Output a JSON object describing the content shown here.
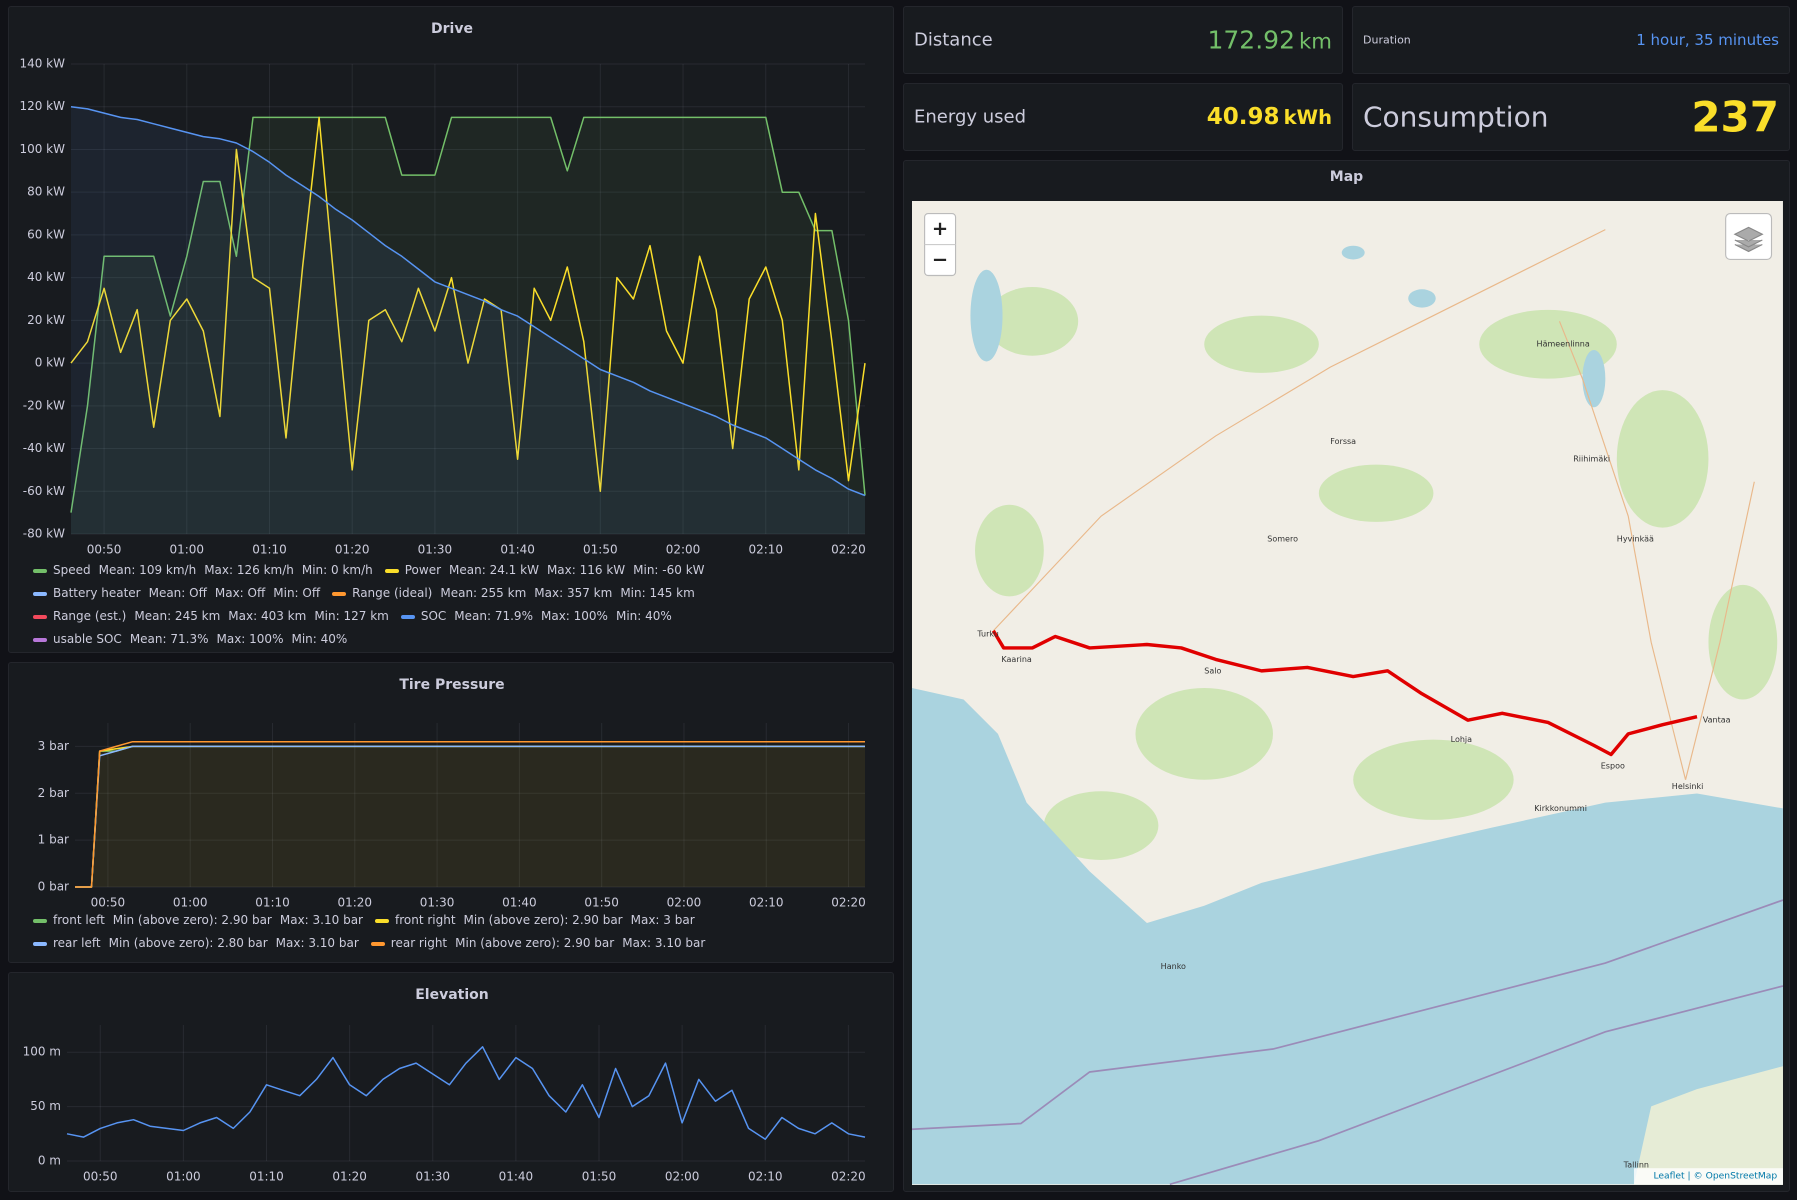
{
  "stats": [
    {
      "title": "Distance",
      "value": 172.92,
      "unit": "km",
      "color": "#73bf69"
    },
    {
      "title": "Duration",
      "value": "1 hour, 35 minutes",
      "color": "#5794f2"
    },
    {
      "title": "Energy used",
      "value": 40.98,
      "unit": "kWh",
      "color": "#fade2a"
    },
    {
      "title": "Consumption",
      "value": 237,
      "color": "#fade2a"
    }
  ],
  "map": {
    "title": "Map",
    "zoom_in": "+",
    "zoom_out": "−",
    "places": [
      "Turku",
      "Salo",
      "Espoo",
      "Helsinki",
      "Vantaa",
      "Hämeenlinna",
      "Tallinn",
      "Hanko",
      "Kaarina",
      "Lohja",
      "Forssa",
      "Somero",
      "Kirkkonummi",
      "Hyvinkää",
      "Riihimäki"
    ],
    "attribution": "Leaflet | © OpenStreetMap"
  },
  "chart_data": [
    {
      "type": "line",
      "title": "Drive",
      "x": [
        "00:46",
        "00:48",
        "00:50",
        "00:52",
        "00:54",
        "00:56",
        "00:58",
        "01:00",
        "01:02",
        "01:04",
        "01:06",
        "01:08",
        "01:10",
        "01:12",
        "01:14",
        "01:16",
        "01:18",
        "01:20",
        "01:22",
        "01:24",
        "01:26",
        "01:28",
        "01:30",
        "01:32",
        "01:34",
        "01:36",
        "01:38",
        "01:40",
        "01:42",
        "01:44",
        "01:46",
        "01:48",
        "01:50",
        "01:52",
        "01:54",
        "01:56",
        "01:58",
        "02:00",
        "02:02",
        "02:04",
        "02:06",
        "02:08",
        "02:10",
        "02:12",
        "02:14",
        "02:16",
        "02:18",
        "02:20",
        "02:22"
      ],
      "xlim": [
        "00:46",
        "02:22"
      ],
      "xticks": [
        "00:50",
        "01:00",
        "01:10",
        "01:20",
        "01:30",
        "01:40",
        "01:50",
        "02:00",
        "02:10",
        "02:20"
      ],
      "ylim": [
        -80,
        140
      ],
      "yticks": [
        {
          "value": -80,
          "label": "-80 kW"
        },
        {
          "value": -60,
          "label": "-60 kW"
        },
        {
          "value": -40,
          "label": "-40 kW"
        },
        {
          "value": -20,
          "label": "-20 kW"
        },
        {
          "value": 0,
          "label": "0 kW"
        },
        {
          "value": 20,
          "label": "20 kW"
        },
        {
          "value": 40,
          "label": "40 kW"
        },
        {
          "value": 60,
          "label": "60 kW"
        },
        {
          "value": 80,
          "label": "80 kW"
        },
        {
          "value": 100,
          "label": "100 kW"
        },
        {
          "value": 120,
          "label": "120 kW"
        },
        {
          "value": 140,
          "label": "140 kW"
        }
      ],
      "grid": true,
      "series": [
        {
          "name": "Speed",
          "color": "#73bf69",
          "fill": true,
          "legend": [
            "Mean: 109 km/h",
            "Max: 126 km/h",
            "Min: 0 km/h"
          ],
          "values": [
            -70,
            -20,
            50,
            50,
            50,
            50,
            22,
            50,
            85,
            85,
            50,
            115,
            115,
            115,
            115,
            115,
            115,
            115,
            115,
            115,
            88,
            88,
            88,
            115,
            115,
            115,
            115,
            115,
            115,
            115,
            90,
            115,
            115,
            115,
            115,
            115,
            115,
            115,
            115,
            115,
            115,
            115,
            115,
            80,
            80,
            62,
            62,
            20,
            -62
          ]
        },
        {
          "name": "Power",
          "color": "#fade2a",
          "legend": [
            "Mean: 24.1 kW",
            "Max: 116 kW",
            "Min: -60 kW"
          ],
          "values": [
            0,
            10,
            35,
            5,
            25,
            -30,
            20,
            30,
            15,
            -25,
            100,
            40,
            35,
            -35,
            45,
            115,
            30,
            -50,
            20,
            25,
            10,
            35,
            15,
            40,
            0,
            30,
            25,
            -45,
            35,
            20,
            45,
            10,
            -60,
            40,
            30,
            55,
            15,
            0,
            50,
            25,
            -40,
            30,
            45,
            20,
            -50,
            70,
            10,
            -55,
            0
          ]
        },
        {
          "name": "Battery heater",
          "color": "#8ab8ff",
          "legend": [
            "Mean: Off",
            "Max: Off",
            "Min: Off"
          ]
        },
        {
          "name": "Range (ideal)",
          "color": "#ff9830",
          "legend": [
            "Mean: 255 km",
            "Max: 357 km",
            "Min: 145 km"
          ]
        },
        {
          "name": "Range (est.)",
          "color": "#f2495c",
          "legend": [
            "Mean: 245 km",
            "Max: 403 km",
            "Min: 127 km"
          ]
        },
        {
          "name": "SOC",
          "color": "#5794f2",
          "fill": true,
          "legend": [
            "Mean: 71.9%",
            "Max: 100%",
            "Min: 40%"
          ],
          "values": [
            120,
            119,
            117,
            115,
            114,
            112,
            110,
            108,
            106,
            105,
            103,
            99,
            94,
            88,
            83,
            78,
            72,
            67,
            61,
            55,
            50,
            44,
            38,
            35,
            32,
            29,
            25,
            22,
            17,
            12,
            7,
            2,
            -3,
            -6,
            -9,
            -13,
            -16,
            -19,
            -22,
            -25,
            -29,
            -32,
            -35,
            -40,
            -45,
            -50,
            -54,
            -59,
            -62
          ]
        },
        {
          "name": "usable SOC",
          "color": "#b877d9",
          "legend": [
            "Mean: 71.3%",
            "Max: 100%",
            "Min: 40%"
          ]
        }
      ]
    },
    {
      "type": "line",
      "title": "Tire Pressure",
      "x": [
        "00:46",
        "00:48",
        "00:49",
        "00:51",
        "00:53",
        "01:10",
        "02:22"
      ],
      "xlim": [
        "00:46",
        "02:22"
      ],
      "xticks": [
        "00:50",
        "01:00",
        "01:10",
        "01:20",
        "01:30",
        "01:40",
        "01:50",
        "02:00",
        "02:10",
        "02:20"
      ],
      "ylim": [
        0,
        3.5
      ],
      "yticks": [
        {
          "value": 0,
          "label": "0 bar"
        },
        {
          "value": 1,
          "label": "1 bar"
        },
        {
          "value": 2,
          "label": "2 bar"
        },
        {
          "value": 3,
          "label": "3 bar"
        }
      ],
      "grid": true,
      "series": [
        {
          "name": "front left",
          "color": "#73bf69",
          "legend": [
            "Min (above zero): 2.90 bar",
            "Max: 3.10 bar"
          ],
          "values": [
            0,
            0,
            2.9,
            2.9,
            3.0,
            3.0,
            3.0
          ]
        },
        {
          "name": "front right",
          "color": "#fade2a",
          "fill": true,
          "legend": [
            "Min (above zero): 2.90 bar",
            "Max: 3 bar"
          ],
          "values": [
            0,
            0,
            2.9,
            2.95,
            3.0,
            3.0,
            3.0
          ]
        },
        {
          "name": "rear left",
          "color": "#8ab8ff",
          "legend": [
            "Min (above zero): 2.80 bar",
            "Max: 3.10 bar"
          ],
          "values": [
            0,
            0,
            2.8,
            2.9,
            3.0,
            3.0,
            3.0
          ]
        },
        {
          "name": "rear right",
          "color": "#ff9830",
          "legend": [
            "Min (above zero): 2.90 bar",
            "Max: 3.10 bar"
          ],
          "values": [
            0,
            0,
            2.9,
            3.0,
            3.1,
            3.1,
            3.1
          ]
        }
      ]
    },
    {
      "type": "line",
      "title": "Elevation",
      "x": [
        "00:46",
        "00:48",
        "00:50",
        "00:52",
        "00:54",
        "00:56",
        "00:58",
        "01:00",
        "01:02",
        "01:04",
        "01:06",
        "01:08",
        "01:10",
        "01:12",
        "01:14",
        "01:16",
        "01:18",
        "01:20",
        "01:22",
        "01:24",
        "01:26",
        "01:28",
        "01:30",
        "01:32",
        "01:34",
        "01:36",
        "01:38",
        "01:40",
        "01:42",
        "01:44",
        "01:46",
        "01:48",
        "01:50",
        "01:52",
        "01:54",
        "01:56",
        "01:58",
        "02:00",
        "02:02",
        "02:04",
        "02:06",
        "02:08",
        "02:10",
        "02:12",
        "02:14",
        "02:16",
        "02:18",
        "02:20",
        "02:22"
      ],
      "xlim": [
        "00:46",
        "02:22"
      ],
      "xticks": [
        "00:50",
        "01:00",
        "01:10",
        "01:20",
        "01:30",
        "01:40",
        "01:50",
        "02:00",
        "02:10",
        "02:20"
      ],
      "ylim": [
        0,
        125
      ],
      "yticks": [
        {
          "value": 0,
          "label": "0 m"
        },
        {
          "value": 50,
          "label": "50 m"
        },
        {
          "value": 100,
          "label": "100 m"
        }
      ],
      "grid": true,
      "series": [
        {
          "color": "#5794f2",
          "values": [
            25,
            22,
            30,
            35,
            38,
            32,
            30,
            28,
            35,
            40,
            30,
            45,
            70,
            65,
            60,
            75,
            95,
            70,
            60,
            75,
            85,
            90,
            80,
            70,
            90,
            105,
            75,
            95,
            85,
            60,
            45,
            70,
            40,
            85,
            50,
            60,
            90,
            35,
            75,
            55,
            65,
            30,
            20,
            40,
            30,
            25,
            35,
            25,
            22
          ]
        }
      ]
    }
  ]
}
